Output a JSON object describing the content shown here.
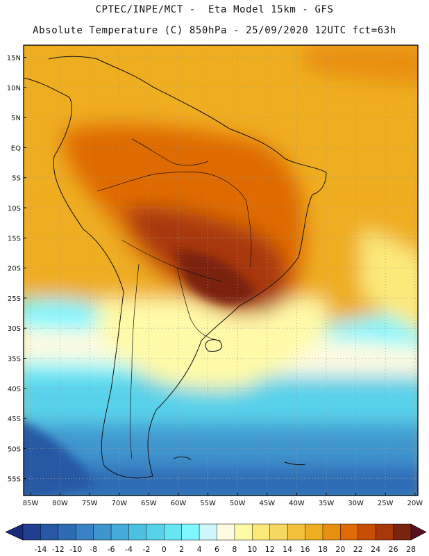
{
  "header": {
    "line1": "CPTEC/INPE/MCT -  Eta Model 15km - GFS",
    "line2": "Absolute Temperature (C) 850hPa - 25/09/2020 12UTC fct=63h"
  },
  "map": {
    "region": "South America",
    "lat_labels": [
      "15N",
      "10N",
      "5N",
      "EQ",
      "5S",
      "10S",
      "15S",
      "20S",
      "25S",
      "30S",
      "35S",
      "40S",
      "45S",
      "50S",
      "55S"
    ],
    "lon_labels": [
      "85W",
      "80W",
      "75W",
      "70W",
      "65W",
      "60W",
      "55W",
      "50W",
      "45W",
      "40W",
      "35W",
      "30W",
      "25W",
      "20W"
    ]
  },
  "colorbar": {
    "labels": [
      "-14",
      "-12",
      "-10",
      "-8",
      "-6",
      "-4",
      "-2",
      "0",
      "2",
      "4",
      "6",
      "8",
      "10",
      "12",
      "14",
      "16",
      "18",
      "20",
      "22",
      "24",
      "26",
      "28"
    ],
    "colors": [
      "#1f3f8f",
      "#2858a4",
      "#2f6bb5",
      "#3a82c4",
      "#3f96cf",
      "#45acd9",
      "#4dc0e2",
      "#58d2ea",
      "#66e6f2",
      "#7ff7ff",
      "#cff6fb",
      "#fffbe0",
      "#fffaa8",
      "#fbe97a",
      "#f7d85e",
      "#f2c23e",
      "#efad20",
      "#e88e10",
      "#df6a06",
      "#c94c05",
      "#a8380a",
      "#7a2410"
    ],
    "under_color": "#1a2a7a",
    "over_color": "#5a0f20"
  }
}
